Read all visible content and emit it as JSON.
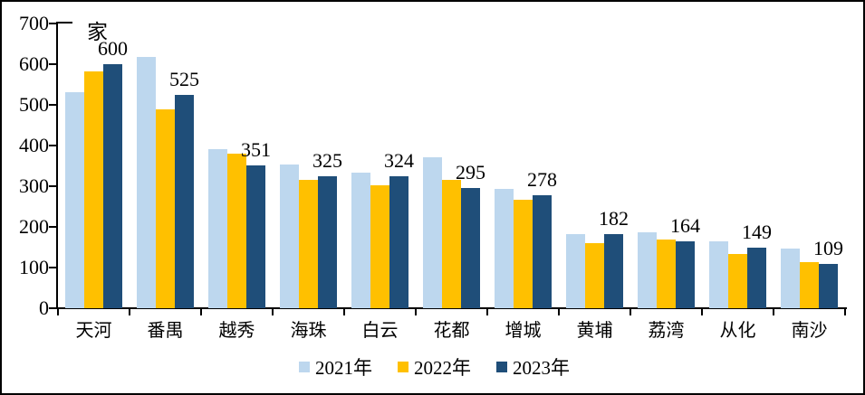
{
  "chart_data": {
    "type": "bar",
    "title": "",
    "unit_label": "家",
    "categories": [
      "天河",
      "番禺",
      "越秀",
      "海珠",
      "白云",
      "花都",
      "增城",
      "黄埔",
      "荔湾",
      "从化",
      "南沙"
    ],
    "series": [
      {
        "name": "2021年",
        "color": "#BDD7EE",
        "data_labels": false,
        "values": [
          532,
          618,
          390,
          354,
          334,
          371,
          293,
          183,
          186,
          165,
          147
        ]
      },
      {
        "name": "2022年",
        "color": "#FFC000",
        "data_labels": false,
        "values": [
          583,
          489,
          379,
          316,
          303,
          316,
          266,
          160,
          168,
          133,
          114
        ]
      },
      {
        "name": "2023年",
        "color": "#1F4E79",
        "data_labels": true,
        "values": [
          600,
          525,
          351,
          325,
          324,
          295,
          278,
          182,
          164,
          149,
          109
        ]
      }
    ],
    "xlabel": "",
    "ylabel": "",
    "ylim": [
      0,
      700
    ],
    "yticks": [
      "0",
      "100",
      "200",
      "300",
      "400",
      "500",
      "600",
      "700"
    ],
    "grid": false,
    "legend_position": "bottom",
    "axis_color": "#000000",
    "background_color": "#ffffff"
  }
}
